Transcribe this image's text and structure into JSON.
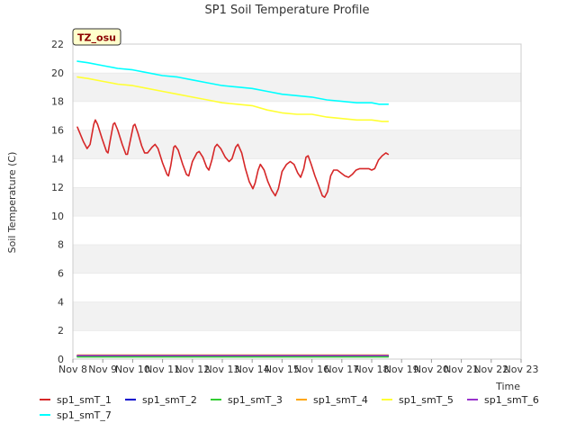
{
  "chart_data": {
    "type": "line",
    "title": "SP1 Soil Temperature Profile",
    "xlabel": "Time",
    "ylabel": "Soil Temperature (C)",
    "site_label": "TZ_osu",
    "xlim": [
      "Nov 8",
      "Nov 23"
    ],
    "ylim": [
      0,
      22
    ],
    "x_ticks": [
      "Nov 8",
      "Nov 9",
      "Nov 10",
      "Nov 11",
      "Nov 12",
      "Nov 13",
      "Nov 14",
      "Nov 15",
      "Nov 16",
      "Nov 17",
      "Nov 18",
      "Nov 19",
      "Nov 20",
      "Nov 21",
      "Nov 22",
      "Nov 23"
    ],
    "y_ticks": [
      0,
      2,
      4,
      6,
      8,
      10,
      12,
      14,
      16,
      18,
      20,
      22
    ],
    "grid": "alternating horizontal bands",
    "legend_position": "bottom",
    "series": [
      {
        "name": "sp1_smT_1",
        "color": "#d62728",
        "points": [
          [
            0.3,
            16.2
          ],
          [
            0.7,
            15.2
          ],
          [
            0.95,
            14.7
          ],
          [
            1.15,
            15.0
          ],
          [
            1.4,
            16.4
          ],
          [
            1.5,
            16.7
          ],
          [
            1.65,
            16.4
          ],
          [
            1.95,
            15.4
          ],
          [
            2.25,
            14.5
          ],
          [
            2.35,
            14.4
          ],
          [
            2.5,
            15.3
          ],
          [
            2.7,
            16.4
          ],
          [
            2.8,
            16.5
          ],
          [
            3.0,
            16.0
          ],
          [
            3.3,
            15.0
          ],
          [
            3.55,
            14.3
          ],
          [
            3.65,
            14.3
          ],
          [
            3.85,
            15.3
          ],
          [
            4.05,
            16.3
          ],
          [
            4.15,
            16.4
          ],
          [
            4.35,
            15.8
          ],
          [
            4.6,
            14.9
          ],
          [
            4.8,
            14.4
          ],
          [
            5.0,
            14.4
          ],
          [
            5.3,
            14.8
          ],
          [
            5.5,
            15.0
          ],
          [
            5.7,
            14.7
          ],
          [
            6.0,
            13.7
          ],
          [
            6.3,
            12.9
          ],
          [
            6.4,
            12.8
          ],
          [
            6.55,
            13.5
          ],
          [
            6.75,
            14.8
          ],
          [
            6.85,
            14.9
          ],
          [
            7.05,
            14.6
          ],
          [
            7.35,
            13.6
          ],
          [
            7.6,
            12.9
          ],
          [
            7.75,
            12.8
          ],
          [
            8.0,
            13.8
          ],
          [
            8.3,
            14.4
          ],
          [
            8.45,
            14.5
          ],
          [
            8.7,
            14.1
          ],
          [
            8.95,
            13.4
          ],
          [
            9.1,
            13.2
          ],
          [
            9.3,
            13.9
          ],
          [
            9.5,
            14.8
          ],
          [
            9.65,
            15.0
          ],
          [
            9.9,
            14.7
          ],
          [
            10.2,
            14.1
          ],
          [
            10.45,
            13.8
          ],
          [
            10.65,
            14.0
          ],
          [
            10.9,
            14.8
          ],
          [
            11.05,
            15.0
          ],
          [
            11.3,
            14.4
          ],
          [
            11.55,
            13.3
          ],
          [
            11.8,
            12.4
          ],
          [
            12.05,
            11.9
          ],
          [
            12.2,
            12.3
          ],
          [
            12.4,
            13.2
          ],
          [
            12.55,
            13.6
          ],
          [
            12.8,
            13.2
          ],
          [
            13.05,
            12.4
          ],
          [
            13.3,
            11.8
          ],
          [
            13.55,
            11.4
          ],
          [
            13.75,
            11.9
          ],
          [
            14.0,
            13.1
          ],
          [
            14.3,
            13.6
          ],
          [
            14.55,
            13.8
          ],
          [
            14.8,
            13.6
          ],
          [
            15.05,
            13.0
          ],
          [
            15.25,
            12.7
          ],
          [
            15.45,
            13.3
          ],
          [
            15.6,
            14.1
          ],
          [
            15.75,
            14.2
          ],
          [
            15.95,
            13.6
          ],
          [
            16.2,
            12.8
          ],
          [
            16.45,
            12.1
          ],
          [
            16.7,
            11.4
          ],
          [
            16.85,
            11.3
          ],
          [
            17.05,
            11.7
          ],
          [
            17.25,
            12.8
          ],
          [
            17.45,
            13.2
          ],
          [
            17.7,
            13.2
          ],
          [
            17.95,
            13.0
          ],
          [
            18.2,
            12.8
          ],
          [
            18.45,
            12.7
          ],
          [
            18.7,
            12.9
          ],
          [
            18.95,
            13.2
          ],
          [
            19.2,
            13.3
          ],
          [
            19.55,
            13.3
          ],
          [
            19.8,
            13.3
          ],
          [
            20.0,
            13.2
          ],
          [
            20.2,
            13.3
          ],
          [
            20.45,
            13.9
          ],
          [
            20.7,
            14.2
          ],
          [
            20.95,
            14.4
          ],
          [
            21.1,
            14.3
          ]
        ]
      },
      {
        "name": "sp1_smT_2",
        "color": "#0000cd",
        "points": [
          [
            0.3,
            0.2
          ],
          [
            21.1,
            0.2
          ]
        ]
      },
      {
        "name": "sp1_smT_3",
        "color": "#32cd32",
        "points": [
          [
            0.3,
            0.15
          ],
          [
            21.1,
            0.15
          ]
        ]
      },
      {
        "name": "sp1_smT_4",
        "color": "#ffa500",
        "points": [
          [
            0.3,
            0.28
          ],
          [
            21.1,
            0.28
          ]
        ]
      },
      {
        "name": "sp1_smT_5",
        "color": "#ffff33",
        "points": [
          [
            0.3,
            19.7
          ],
          [
            1.0,
            19.6
          ],
          [
            2.0,
            19.4
          ],
          [
            3.0,
            19.2
          ],
          [
            4.0,
            19.1
          ],
          [
            5.0,
            18.9
          ],
          [
            6.0,
            18.7
          ],
          [
            7.0,
            18.5
          ],
          [
            8.0,
            18.3
          ],
          [
            9.0,
            18.1
          ],
          [
            10.0,
            17.9
          ],
          [
            11.0,
            17.8
          ],
          [
            12.0,
            17.7
          ],
          [
            13.0,
            17.4
          ],
          [
            14.0,
            17.2
          ],
          [
            15.0,
            17.1
          ],
          [
            16.0,
            17.1
          ],
          [
            17.0,
            16.9
          ],
          [
            18.0,
            16.8
          ],
          [
            19.0,
            16.7
          ],
          [
            20.0,
            16.7
          ],
          [
            20.7,
            16.6
          ],
          [
            21.1,
            16.6
          ]
        ]
      },
      {
        "name": "sp1_smT_6",
        "color": "#9932cc",
        "points": [
          [
            0.3,
            0.25
          ],
          [
            21.1,
            0.25
          ]
        ]
      },
      {
        "name": "sp1_smT_7",
        "color": "#00ffff",
        "points": [
          [
            0.3,
            20.8
          ],
          [
            1.0,
            20.7
          ],
          [
            2.0,
            20.5
          ],
          [
            3.0,
            20.3
          ],
          [
            4.0,
            20.2
          ],
          [
            5.0,
            20.0
          ],
          [
            6.0,
            19.8
          ],
          [
            7.0,
            19.7
          ],
          [
            8.0,
            19.5
          ],
          [
            9.0,
            19.3
          ],
          [
            10.0,
            19.1
          ],
          [
            11.0,
            19.0
          ],
          [
            12.0,
            18.9
          ],
          [
            13.0,
            18.7
          ],
          [
            14.0,
            18.5
          ],
          [
            15.0,
            18.4
          ],
          [
            16.0,
            18.3
          ],
          [
            17.0,
            18.1
          ],
          [
            18.0,
            18.0
          ],
          [
            19.0,
            17.9
          ],
          [
            20.0,
            17.9
          ],
          [
            20.5,
            17.8
          ],
          [
            21.1,
            17.8
          ]
        ]
      }
    ]
  }
}
